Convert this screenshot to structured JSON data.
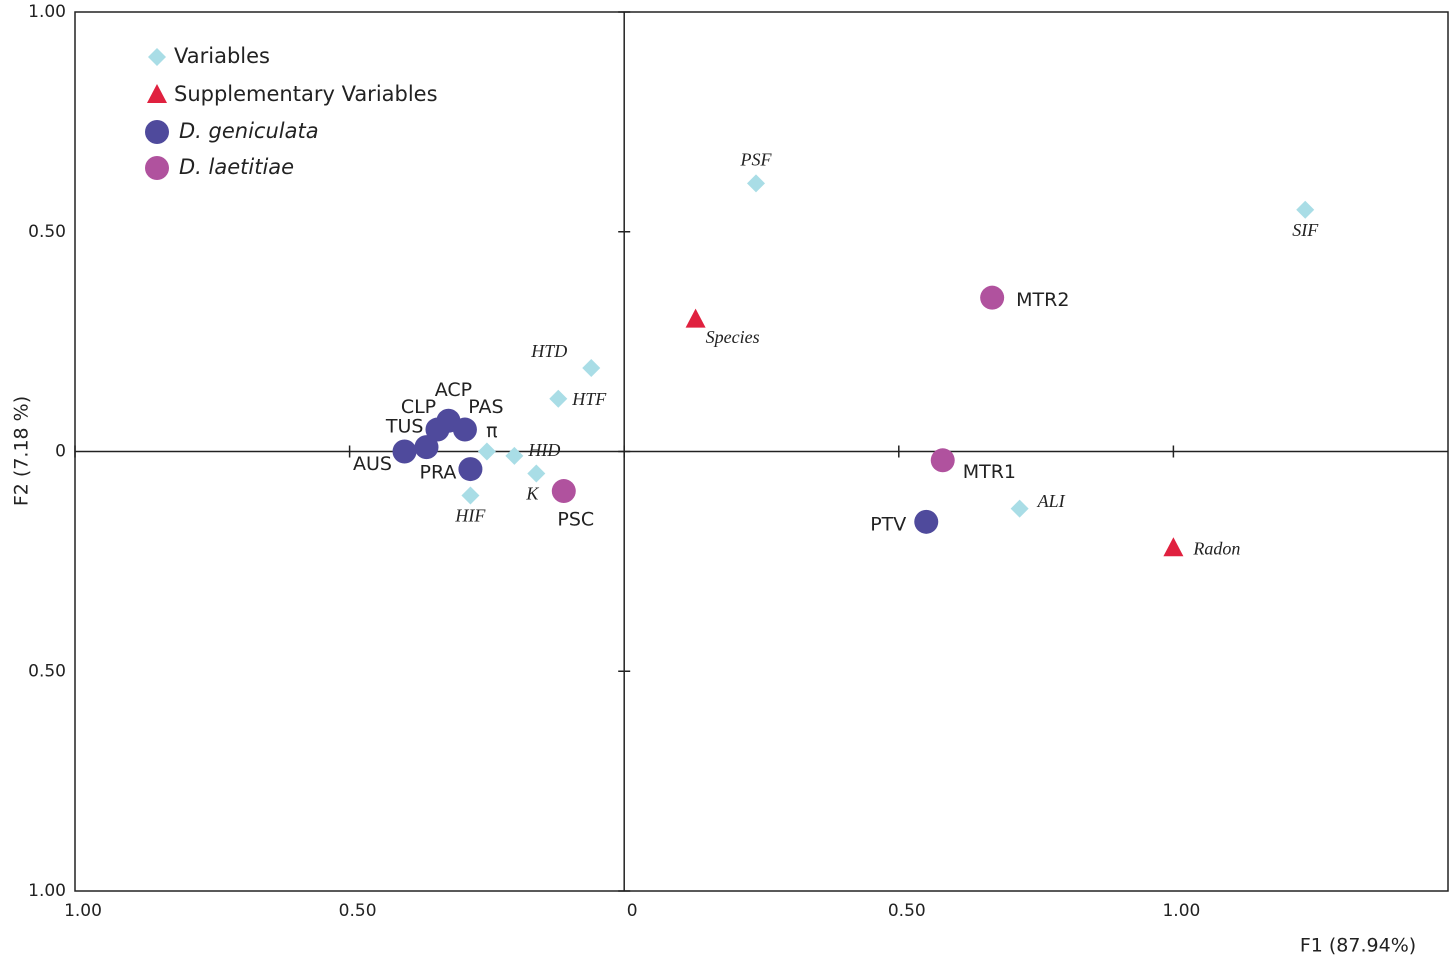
{
  "chart_data": {
    "type": "scatter",
    "xlabel": "F1 (87.94%)",
    "ylabel": "F2 (7.18 %)",
    "xlim": [
      -1,
      1.5
    ],
    "ylim": [
      -1,
      1
    ],
    "xticks": [
      {
        "value": -1,
        "label": "1.00"
      },
      {
        "value": -0.5,
        "label": "0.50"
      },
      0,
      {
        "value": 0.5,
        "label": "0.50"
      },
      {
        "value": 1,
        "label": "1.00"
      }
    ],
    "yticks": [
      {
        "value": -1,
        "label": "1.00"
      },
      {
        "value": -0.5,
        "label": "0.50"
      },
      0,
      {
        "value": 0.5,
        "label": "0.50"
      },
      {
        "value": 1,
        "label": "1.00"
      }
    ],
    "legend": "top-left",
    "series": [
      {
        "name": "Variables",
        "color": "#a9dde6",
        "marker": "diamond",
        "labels": [
          "PSF",
          "SIF",
          "HTD",
          "HTF",
          "HID",
          "π",
          "K",
          "HIF",
          "ALI"
        ],
        "x": [
          0.24,
          1.24,
          -0.06,
          -0.12,
          -0.2,
          -0.25,
          -0.16,
          -0.28,
          0.72
        ],
        "values": [
          0.61,
          0.55,
          0.19,
          0.12,
          -0.01,
          0,
          -0.05,
          -0.1,
          -0.13
        ]
      },
      {
        "name": "Supplementary Variables",
        "color": "#e0213f",
        "marker": "triangle",
        "labels": [
          "Species",
          "Radon"
        ],
        "x": [
          0.13,
          1.0
        ],
        "values": [
          0.3,
          -0.22
        ]
      },
      {
        "name": "D. geniculata",
        "color": "#4f4a9c",
        "marker": "circle",
        "labels": [
          "ACP",
          "CLP",
          "PAS",
          "TUS",
          "AUS",
          "PRA",
          "PTV"
        ],
        "x": [
          -0.32,
          -0.34,
          -0.29,
          -0.36,
          -0.4,
          -0.28,
          0.55
        ],
        "values": [
          0.07,
          0.05,
          0.05,
          0.01,
          0,
          -0.04,
          -0.16
        ]
      },
      {
        "name": "D. laetitiae",
        "color": "#b0529e",
        "marker": "circle",
        "labels": [
          "PSC",
          "MTR1",
          "MTR2"
        ],
        "x": [
          -0.11,
          0.58,
          0.67
        ],
        "values": [
          -0.09,
          -0.02,
          0.35
        ]
      }
    ]
  }
}
